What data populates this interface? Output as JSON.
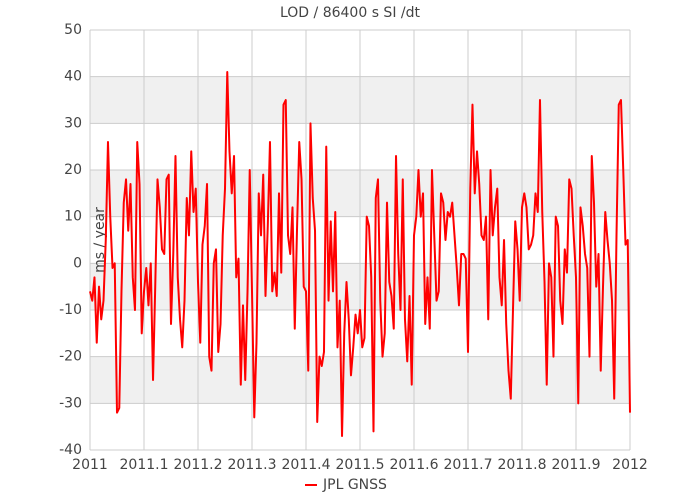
{
  "chart_data": {
    "type": "line",
    "title": "LOD / 86400 s SI /dt",
    "y_label": "ms / year",
    "xlim": [
      2011,
      2012
    ],
    "xticks": [
      2011,
      2011.1,
      2011.2,
      2011.3,
      2011.4,
      2011.5,
      2011.6,
      2011.7,
      2011.8,
      2011.9,
      2012
    ],
    "ylim": [
      -40,
      50
    ],
    "yticks": [
      -40,
      -30,
      -20,
      -10,
      0,
      10,
      20,
      30,
      40,
      50
    ],
    "grid": true,
    "legend": "bottom",
    "x": [
      2011,
      2011.0042,
      2011.0083,
      2011.0125,
      2011.0167,
      2011.0208,
      2011.025,
      2011.0292,
      2011.0333,
      2011.0375,
      2011.0417,
      2011.0458,
      2011.05,
      2011.0542,
      2011.0583,
      2011.0625,
      2011.0667,
      2011.0708,
      2011.075,
      2011.0792,
      2011.0833,
      2011.0875,
      2011.0917,
      2011.0958,
      2011.1,
      2011.1042,
      2011.1083,
      2011.1125,
      2011.1167,
      2011.1208,
      2011.125,
      2011.1292,
      2011.1333,
      2011.1375,
      2011.1417,
      2011.1458,
      2011.15,
      2011.1542,
      2011.1583,
      2011.1625,
      2011.1667,
      2011.1708,
      2011.175,
      2011.1792,
      2011.1833,
      2011.1875,
      2011.1917,
      2011.1958,
      2011.2,
      2011.2042,
      2011.2083,
      2011.2125,
      2011.2167,
      2011.2208,
      2011.225,
      2011.2292,
      2011.2333,
      2011.2375,
      2011.2417,
      2011.2458,
      2011.25,
      2011.2542,
      2011.2583,
      2011.2625,
      2011.2667,
      2011.2708,
      2011.275,
      2011.2792,
      2011.2833,
      2011.2875,
      2011.2917,
      2011.2958,
      2011.3,
      2011.3042,
      2011.3083,
      2011.3125,
      2011.3167,
      2011.3208,
      2011.325,
      2011.3292,
      2011.3333,
      2011.3375,
      2011.3417,
      2011.3458,
      2011.35,
      2011.3542,
      2011.3583,
      2011.3625,
      2011.3667,
      2011.3708,
      2011.375,
      2011.3792,
      2011.3833,
      2011.3875,
      2011.3917,
      2011.3958,
      2011.4,
      2011.4042,
      2011.4083,
      2011.4125,
      2011.4167,
      2011.4208,
      2011.425,
      2011.4292,
      2011.4333,
      2011.4375,
      2011.4417,
      2011.4458,
      2011.45,
      2011.4542,
      2011.4583,
      2011.4625,
      2011.4667,
      2011.4708,
      2011.475,
      2011.4792,
      2011.4833,
      2011.4875,
      2011.4917,
      2011.4958,
      2011.5,
      2011.5042,
      2011.5083,
      2011.5125,
      2011.5167,
      2011.5208,
      2011.525,
      2011.5292,
      2011.5333,
      2011.5375,
      2011.5417,
      2011.5458,
      2011.55,
      2011.5542,
      2011.5583,
      2011.5625,
      2011.5667,
      2011.5708,
      2011.575,
      2011.5792,
      2011.5833,
      2011.5875,
      2011.5917,
      2011.5958,
      2011.6,
      2011.6042,
      2011.6083,
      2011.6125,
      2011.6167,
      2011.6208,
      2011.625,
      2011.6292,
      2011.6333,
      2011.6375,
      2011.6417,
      2011.6458,
      2011.65,
      2011.6542,
      2011.6583,
      2011.6625,
      2011.6667,
      2011.6708,
      2011.675,
      2011.6792,
      2011.6833,
      2011.6875,
      2011.6917,
      2011.6958,
      2011.7,
      2011.7042,
      2011.7083,
      2011.7125,
      2011.7167,
      2011.7208,
      2011.725,
      2011.7292,
      2011.7333,
      2011.7375,
      2011.7417,
      2011.7458,
      2011.75,
      2011.7542,
      2011.7583,
      2011.7625,
      2011.7667,
      2011.7708,
      2011.775,
      2011.7792,
      2011.7833,
      2011.7875,
      2011.7917,
      2011.7958,
      2011.8,
      2011.8042,
      2011.8083,
      2011.8125,
      2011.8167,
      2011.8208,
      2011.825,
      2011.8292,
      2011.8333,
      2011.8375,
      2011.8417,
      2011.8458,
      2011.85,
      2011.8542,
      2011.8583,
      2011.8625,
      2011.8667,
      2011.8708,
      2011.875,
      2011.8792,
      2011.8833,
      2011.8875,
      2011.8917,
      2011.8958,
      2011.9,
      2011.9042,
      2011.9083,
      2011.9125,
      2011.9167,
      2011.9208,
      2011.925,
      2011.9292,
      2011.9333,
      2011.9375,
      2011.9417,
      2011.9458,
      2011.95,
      2011.9542,
      2011.9583,
      2011.9625,
      2011.9667,
      2011.9708,
      2011.975,
      2011.9792,
      2011.9833,
      2011.9875,
      2011.9917,
      2011.9958,
      2012
    ],
    "series": [
      {
        "name": "JPL GNSS",
        "color": "#ff0000",
        "values": [
          -6,
          -8,
          -3,
          -17,
          -5,
          -12,
          -8,
          5,
          26,
          10,
          -1,
          0,
          -32,
          -31,
          -6,
          13,
          18,
          7,
          17,
          -3,
          -10,
          26,
          17,
          -15,
          -6,
          -1,
          -9,
          0,
          -25,
          -5,
          18,
          12,
          3,
          2,
          18,
          19,
          -13,
          2,
          23,
          -3,
          -12,
          -18,
          -8,
          14,
          6,
          24,
          11,
          16,
          -4,
          -17,
          4,
          8,
          17,
          -20,
          -23,
          0,
          3,
          -19,
          -13,
          6,
          16,
          41,
          24,
          15,
          23,
          -3,
          1,
          -26,
          -9,
          -25,
          -6,
          20,
          -6,
          -33,
          -17,
          15,
          6,
          19,
          -7,
          8,
          26,
          -6,
          -2,
          -7,
          15,
          -2,
          34,
          35,
          6,
          2,
          12,
          -14,
          7,
          26,
          18,
          -5,
          -6,
          -23,
          30,
          14,
          7,
          -34,
          -20,
          -22,
          -19,
          25,
          -8,
          9,
          -6,
          11,
          -18,
          -8,
          -37,
          -15,
          -4,
          -12,
          -24,
          -18,
          -11,
          -15,
          -10,
          -18,
          -16,
          10,
          8,
          -3,
          -36,
          14,
          18,
          -8,
          -20,
          -15,
          13,
          -4,
          -7,
          -14,
          23,
          2,
          -10,
          18,
          -12,
          -21,
          -7,
          -26,
          6,
          10,
          20,
          10,
          15,
          -13,
          -3,
          -14,
          20,
          6,
          -8,
          -6,
          15,
          13,
          5,
          11,
          10,
          13,
          6,
          -1,
          -9,
          2,
          2,
          1,
          -19,
          16,
          34,
          15,
          24,
          17,
          6,
          5,
          10,
          -12,
          20,
          6,
          12,
          16,
          -3,
          -9,
          5,
          -13,
          -23,
          -29,
          -10,
          9,
          3,
          -8,
          12,
          15,
          12,
          3,
          4,
          6,
          15,
          11,
          35,
          11,
          -4,
          -26,
          0,
          -3,
          -20,
          10,
          8,
          -8,
          -13,
          3,
          -2,
          18,
          16,
          6,
          -3,
          -30,
          12,
          8,
          2,
          -1,
          -20,
          23,
          13,
          -5,
          2,
          -23,
          -5,
          11,
          5,
          0,
          -8,
          -29,
          6,
          34,
          35,
          20,
          4,
          5,
          -32
        ]
      }
    ]
  }
}
